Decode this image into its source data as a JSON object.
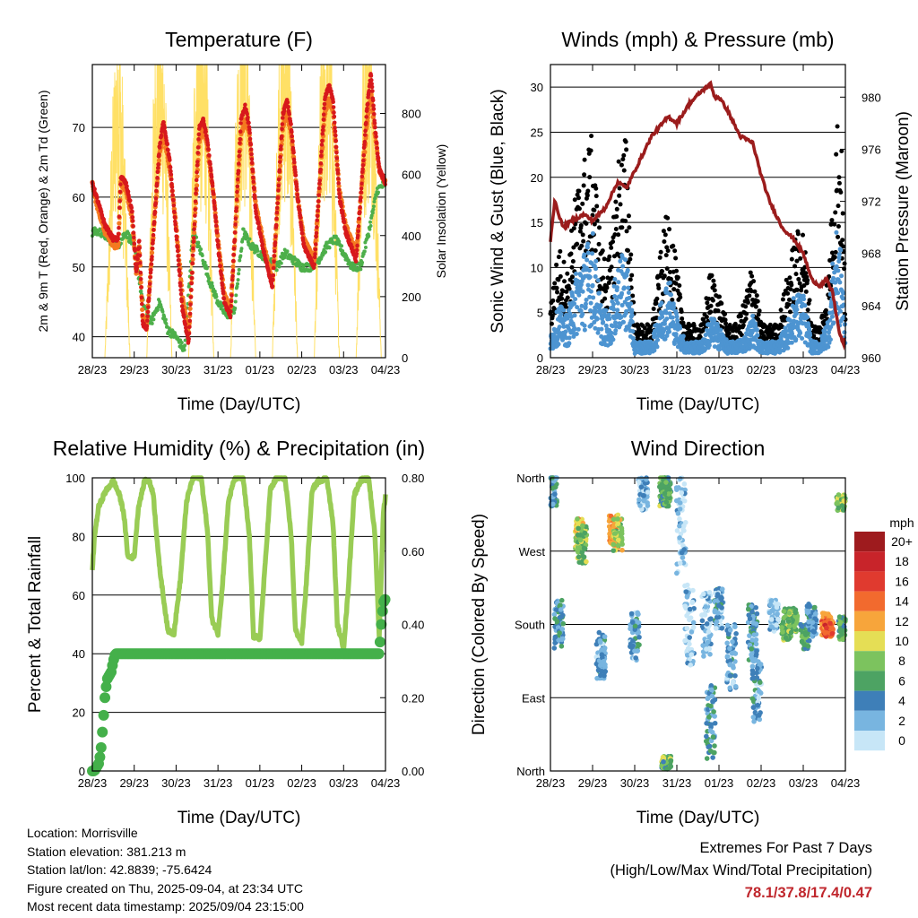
{
  "x_ticks": [
    "28/23",
    "29/23",
    "30/23",
    "31/23",
    "01/23",
    "02/23",
    "03/23",
    "04/23"
  ],
  "chart_data": [
    {
      "type": "line",
      "title": "Temperature (F)",
      "xlabel": "Time (Day/UTC)",
      "ylabel": "2m & 9m T (Red, Orange) & 2m Td (Green)",
      "y2label": "Solar Insolation (Yellow)",
      "ylim": [
        37,
        79
      ],
      "yticks": [
        40,
        50,
        60,
        70
      ],
      "y2lim": [
        0,
        960
      ],
      "y2ticks": [
        0,
        200,
        400,
        600,
        800
      ],
      "grid": "horizontal",
      "colors": {
        "t2m": "#d7191c",
        "t9m": "#f47a20",
        "td": "#4daf4a",
        "solar": "#ffe066"
      },
      "series": [
        {
          "key": "t2m",
          "x": [
            0,
            0.1,
            0.3,
            0.5,
            0.62,
            0.68,
            0.8,
            0.95,
            1.05,
            1.12,
            1.2,
            1.3,
            1.6,
            1.7,
            1.85,
            2.0,
            2.15,
            2.3,
            2.55,
            2.65,
            2.75,
            2.9,
            3.0,
            3.15,
            3.3,
            3.55,
            3.65,
            3.75,
            3.9,
            4.1,
            4.3,
            4.55,
            4.65,
            4.75,
            4.9,
            5.05,
            5.3,
            5.55,
            5.65,
            5.75,
            5.9,
            6.05,
            6.3,
            6.55,
            6.65,
            6.75,
            6.85,
            7.0
          ],
          "values": [
            62,
            60,
            56,
            54,
            54,
            63,
            62,
            58,
            49,
            54,
            42,
            41,
            67,
            71,
            65,
            55,
            44,
            39,
            70,
            71,
            68,
            60,
            53,
            45,
            43,
            71,
            73,
            70,
            58,
            52,
            47,
            72,
            74,
            70,
            60,
            53,
            50,
            74,
            76,
            74,
            60,
            55,
            51,
            72,
            78,
            70,
            64,
            62
          ]
        },
        {
          "key": "t9m",
          "x": [
            0,
            0.1,
            0.3,
            0.5,
            0.62,
            0.68,
            0.8,
            0.95,
            1.05,
            1.12,
            1.2,
            1.3,
            1.6,
            1.7,
            1.85,
            2.0,
            2.15,
            2.3,
            2.55,
            2.65,
            2.75,
            2.9,
            3.0,
            3.15,
            3.3,
            3.55,
            3.65,
            3.75,
            3.9,
            4.1,
            4.3,
            4.55,
            4.65,
            4.75,
            4.9,
            5.05,
            5.3,
            5.55,
            5.65,
            5.75,
            5.9,
            6.05,
            6.3,
            6.55,
            6.65,
            6.75,
            6.85,
            7.0
          ],
          "values": [
            62,
            59,
            55,
            53,
            53,
            62,
            61,
            57,
            49,
            53,
            43,
            42,
            66,
            69,
            64,
            56,
            46,
            40,
            68,
            70,
            67,
            60,
            54,
            46,
            44,
            69,
            71,
            69,
            59,
            53,
            48,
            70,
            72,
            69,
            60,
            54,
            51,
            72,
            74,
            72,
            61,
            56,
            52,
            70,
            75,
            69,
            64,
            62
          ]
        },
        {
          "key": "td",
          "x": [
            0,
            0.2,
            0.4,
            0.6,
            0.8,
            1.0,
            1.2,
            1.4,
            1.6,
            1.8,
            2.0,
            2.2,
            2.4,
            2.6,
            2.8,
            3.0,
            3.2,
            3.4,
            3.6,
            3.8,
            4.0,
            4.2,
            4.4,
            4.6,
            4.8,
            5.0,
            5.2,
            5.4,
            5.6,
            5.8,
            6.0,
            6.2,
            6.4,
            6.6,
            6.8,
            7.0
          ],
          "values": [
            55,
            55,
            54,
            53,
            55,
            53,
            45,
            42,
            45,
            41,
            40,
            38,
            55,
            52,
            48,
            45,
            43,
            44,
            55,
            53,
            52,
            51,
            50,
            52,
            51,
            50,
            50,
            51,
            53,
            54,
            52,
            50,
            50,
            55,
            61,
            62
          ]
        },
        {
          "key": "solar",
          "x": [
            0,
            0.3,
            0.45,
            0.55,
            0.62,
            0.7,
            0.78,
            0.9,
            1.0,
            1.3,
            1.45,
            1.55,
            1.62,
            1.7,
            1.78,
            1.9,
            2.0,
            2.3,
            2.45,
            2.55,
            2.62,
            2.7,
            2.78,
            2.9,
            3.0,
            3.3,
            3.45,
            3.55,
            3.62,
            3.7,
            3.78,
            3.9,
            4.0,
            4.3,
            4.45,
            4.55,
            4.62,
            4.7,
            4.78,
            4.9,
            5.0,
            5.3,
            5.45,
            5.55,
            5.62,
            5.7,
            5.78,
            5.9,
            6.0,
            6.3,
            6.45,
            6.55,
            6.62,
            6.7,
            6.78,
            6.9,
            7.0
          ],
          "values": [
            0,
            0,
            500,
            750,
            820,
            700,
            450,
            0,
            0,
            0,
            580,
            880,
            760,
            820,
            500,
            0,
            0,
            0,
            760,
            960,
            700,
            860,
            500,
            0,
            0,
            0,
            700,
            840,
            880,
            780,
            500,
            0,
            0,
            0,
            720,
            870,
            900,
            760,
            480,
            0,
            0,
            0,
            700,
            860,
            900,
            780,
            480,
            0,
            0,
            0,
            720,
            860,
            900,
            760,
            480,
            0,
            0
          ]
        }
      ]
    },
    {
      "type": "scatter",
      "title": "Winds (mph) & Pressure (mb)",
      "xlabel": "Time (Day/UTC)",
      "ylabel": "Sonic Wind & Gust (Blue, Black)",
      "y2label": "Station Pressure (Maroon)",
      "ylim": [
        0,
        32.5
      ],
      "yticks": [
        0,
        5,
        10,
        15,
        20,
        25,
        30
      ],
      "y2lim": [
        960,
        982.5
      ],
      "y2ticks": [
        960,
        964,
        968,
        972,
        976,
        980
      ],
      "grid": "horizontal",
      "colors": {
        "wind": "#4d94d1",
        "gust": "#000000",
        "pressure": "#9b1c1c"
      },
      "series": [
        {
          "key": "pressure",
          "x": [
            0,
            0.1,
            0.3,
            0.5,
            0.8,
            1.0,
            1.3,
            1.6,
            1.8,
            2.1,
            2.4,
            2.8,
            3.0,
            3.3,
            3.6,
            3.8,
            3.9,
            4.0,
            4.2,
            4.5,
            4.8,
            5.0,
            5.2,
            5.5,
            5.8,
            6.0,
            6.2,
            6.4,
            6.55,
            6.7,
            6.85,
            6.95,
            7.0
          ],
          "values": [
            969,
            972,
            970,
            970.5,
            971,
            970.5,
            971.5,
            973.5,
            973,
            975,
            977,
            978.5,
            978,
            979.5,
            980.5,
            981,
            980,
            980,
            979,
            977,
            976.5,
            974,
            972,
            970,
            969,
            968,
            966,
            965.5,
            966,
            965,
            962,
            961,
            961.5
          ]
        },
        {
          "key": "gust",
          "x": [
            0,
            0.2,
            0.4,
            0.6,
            0.8,
            1.0,
            1.2,
            1.4,
            1.6,
            1.8,
            2.0,
            2.2,
            2.4,
            2.6,
            2.8,
            3.0,
            3.2,
            3.4,
            3.6,
            3.8,
            4.0,
            4.2,
            4.4,
            4.6,
            4.8,
            5.0,
            5.2,
            5.4,
            5.6,
            5.8,
            6.0,
            6.2,
            6.4,
            6.6,
            6.7,
            6.8,
            6.9,
            7.0
          ],
          "values": [
            5,
            10,
            8,
            15,
            18,
            20,
            10,
            9,
            18,
            20,
            3,
            3,
            3,
            9,
            14,
            8,
            3,
            3,
            3,
            8,
            6,
            3,
            3,
            5,
            9,
            3,
            3,
            3,
            7,
            11,
            12,
            3,
            3,
            8,
            15,
            22,
            20,
            6
          ]
        },
        {
          "key": "wind",
          "x": [
            0,
            0.2,
            0.4,
            0.6,
            0.8,
            1.0,
            1.2,
            1.4,
            1.6,
            1.8,
            2.0,
            2.2,
            2.4,
            2.6,
            2.8,
            3.0,
            3.2,
            3.4,
            3.6,
            3.8,
            4.0,
            4.2,
            4.4,
            4.6,
            4.8,
            5.0,
            5.2,
            5.4,
            5.6,
            5.8,
            6.0,
            6.2,
            6.4,
            6.6,
            6.7,
            6.8,
            6.9,
            7.0
          ],
          "values": [
            2,
            5,
            4,
            8,
            10,
            12,
            5,
            4,
            9,
            10,
            1.5,
            1.5,
            1.5,
            5,
            8,
            4,
            1.5,
            1.5,
            1.5,
            4,
            3,
            1.5,
            1.5,
            2,
            4,
            1.5,
            1.5,
            1.5,
            3,
            6,
            6,
            1.5,
            1.5,
            4,
            9,
            12,
            10,
            3
          ]
        }
      ]
    },
    {
      "type": "line",
      "title": "Relative Humidity (%) & Precipitation (in)",
      "xlabel": "Time (Day/UTC)",
      "ylabel": "Percent & Total Rainfall",
      "ylim": [
        0,
        100
      ],
      "yticks": [
        0,
        20,
        40,
        60,
        80,
        100
      ],
      "y2lim": [
        0,
        0.8
      ],
      "y2ticks": [
        "0.00",
        "0.20",
        "0.40",
        "0.60",
        "0.80"
      ],
      "grid": "horizontal",
      "colors": {
        "rh": "#99cc55",
        "precip": "#44b04a"
      },
      "series": [
        {
          "key": "rh",
          "x": [
            0,
            0.05,
            0.15,
            0.3,
            0.5,
            0.65,
            0.75,
            0.85,
            1.0,
            1.1,
            1.25,
            1.35,
            1.45,
            1.6,
            1.8,
            1.95,
            2.1,
            2.25,
            2.4,
            2.6,
            2.75,
            2.85,
            3.0,
            3.1,
            3.25,
            3.4,
            3.6,
            3.75,
            3.85,
            4.0,
            4.1,
            4.25,
            4.4,
            4.6,
            4.75,
            4.85,
            5.0,
            5.1,
            5.25,
            5.4,
            5.6,
            5.75,
            5.85,
            6.0,
            6.1,
            6.25,
            6.4,
            6.6,
            6.75,
            6.85,
            6.95,
            7.0
          ],
          "values": [
            68,
            80,
            90,
            95,
            99,
            94,
            88,
            73,
            73,
            90,
            99,
            99,
            95,
            70,
            48,
            47,
            65,
            92,
            100,
            100,
            82,
            52,
            47,
            62,
            92,
            100,
            100,
            80,
            46,
            45,
            65,
            96,
            100,
            100,
            80,
            48,
            44,
            62,
            96,
            99,
            100,
            84,
            50,
            42,
            60,
            94,
            99,
            100,
            80,
            46,
            88,
            94
          ]
        },
        {
          "key": "precip",
          "x": [
            0,
            0.05,
            0.15,
            0.2,
            0.25,
            0.3,
            0.35,
            0.4,
            0.45,
            0.5,
            0.55,
            0.6,
            1.0,
            2.0,
            3.0,
            4.0,
            5.0,
            6.0,
            6.85,
            6.9,
            6.95,
            7.0
          ],
          "values": [
            0,
            0,
            0.02,
            0.05,
            0.12,
            0.2,
            0.25,
            0.26,
            0.27,
            0.3,
            0.32,
            0.32,
            0.32,
            0.32,
            0.32,
            0.32,
            0.32,
            0.32,
            0.32,
            0.4,
            0.46,
            0.47
          ]
        }
      ]
    },
    {
      "type": "scatter",
      "title": "Wind Direction",
      "xlabel": "Time (Day/UTC)",
      "ylabel": "Direction (Colored By Speed)",
      "yticks": [
        "North",
        "West",
        "South",
        "East",
        "North"
      ],
      "ylim": [
        0,
        360
      ],
      "colorbar": {
        "title": "mph",
        "labels": [
          "20+",
          "18",
          "16",
          "14",
          "12",
          "10",
          "8",
          "6",
          "4",
          "2",
          "0"
        ],
        "colors": [
          "#9e1b1e",
          "#c8242a",
          "#e03a2f",
          "#f26a2e",
          "#f7a53b",
          "#e5de55",
          "#7cc35e",
          "#4da363",
          "#3e7fb8",
          "#78b5e0",
          "#c7e6f7"
        ]
      },
      "clusters": [
        {
          "x": 0.05,
          "dir": 345,
          "spread": 20,
          "speed": 4
        },
        {
          "x": 0.2,
          "dir": 180,
          "spread": 30,
          "speed": 4
        },
        {
          "x": 0.7,
          "dir": 290,
          "spread": 20,
          "speed": 11
        },
        {
          "x": 0.75,
          "dir": 280,
          "spread": 25,
          "speed": 8
        },
        {
          "x": 1.5,
          "dir": 295,
          "spread": 20,
          "speed": 12
        },
        {
          "x": 1.6,
          "dir": 290,
          "spread": 20,
          "speed": 9
        },
        {
          "x": 1.2,
          "dir": 140,
          "spread": 30,
          "speed": 3
        },
        {
          "x": 2.2,
          "dir": 340,
          "spread": 20,
          "speed": 2
        },
        {
          "x": 2.0,
          "dir": 165,
          "spread": 30,
          "speed": 3
        },
        {
          "x": 2.7,
          "dir": 345,
          "spread": 20,
          "speed": 7
        },
        {
          "x": 2.75,
          "dir": 340,
          "spread": 15,
          "speed": 6
        },
        {
          "x": 3.1,
          "dir": 300,
          "spread": 60,
          "speed": 1
        },
        {
          "x": 2.75,
          "dir": 10,
          "spread": 8,
          "speed": 7
        },
        {
          "x": 3.3,
          "dir": 180,
          "spread": 50,
          "speed": 1
        },
        {
          "x": 3.7,
          "dir": 180,
          "spread": 40,
          "speed": 2
        },
        {
          "x": 3.8,
          "dir": 60,
          "spread": 45,
          "speed": 4
        },
        {
          "x": 4.0,
          "dir": 200,
          "spread": 25,
          "speed": 3
        },
        {
          "x": 4.3,
          "dir": 140,
          "spread": 40,
          "speed": 3
        },
        {
          "x": 4.8,
          "dir": 170,
          "spread": 35,
          "speed": 4
        },
        {
          "x": 4.9,
          "dir": 100,
          "spread": 40,
          "speed": 3
        },
        {
          "x": 5.3,
          "dir": 190,
          "spread": 20,
          "speed": 2
        },
        {
          "x": 5.6,
          "dir": 180,
          "spread": 20,
          "speed": 7
        },
        {
          "x": 5.75,
          "dir": 185,
          "spread": 15,
          "speed": 8
        },
        {
          "x": 6.05,
          "dir": 165,
          "spread": 15,
          "speed": 6
        },
        {
          "x": 6.2,
          "dir": 185,
          "spread": 20,
          "speed": 3
        },
        {
          "x": 6.55,
          "dir": 180,
          "spread": 15,
          "speed": 13
        },
        {
          "x": 6.6,
          "dir": 175,
          "spread": 10,
          "speed": 15
        },
        {
          "x": 6.95,
          "dir": 175,
          "spread": 15,
          "speed": 6
        },
        {
          "x": 6.9,
          "dir": 330,
          "spread": 10,
          "speed": 8
        }
      ]
    }
  ],
  "info": {
    "location": "Location: Morrisville",
    "elevation": "Station elevation: 381.213 m",
    "latlon": "Station lat/lon: 42.8839; -75.6424",
    "created": "Figure created on Thu, 2025-09-04, at 23:34 UTC",
    "recent": "Most recent data timestamp: 2025/09/04 23:15:00"
  },
  "extremes": {
    "title": "Extremes For Past 7 Days",
    "subtitle": "(High/Low/Max Wind/Total Precipitation)",
    "values": "78.1/37.8/17.4/0.47"
  }
}
